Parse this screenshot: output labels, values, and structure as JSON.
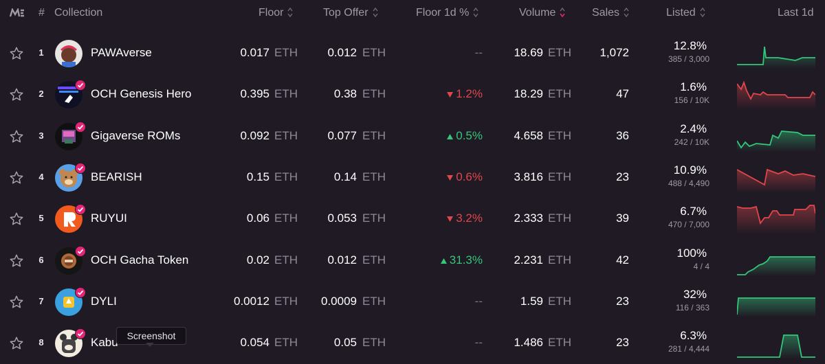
{
  "header": {
    "rank": "#",
    "collection": "Collection",
    "floor": "Floor",
    "top_offer": "Top Offer",
    "floor_change": "Floor 1d %",
    "volume": "Volume",
    "sales": "Sales",
    "listed": "Listed",
    "last": "Last 1d"
  },
  "rows": [
    {
      "rank": "1",
      "name": "PAWAverse",
      "floor": "0.017",
      "floor_unit": "ETH",
      "offer": "0.012",
      "offer_unit": "ETH",
      "change": "--",
      "dir": "none",
      "volume": "18.69",
      "volume_unit": "ETH",
      "sales": "1,072",
      "listed_pct": "12.8%",
      "listed_count": "385 / 3,000",
      "trend": "up"
    },
    {
      "rank": "2",
      "name": "OCH Genesis Hero",
      "floor": "0.395",
      "floor_unit": "ETH",
      "offer": "0.38",
      "offer_unit": "ETH",
      "change": "1.2%",
      "dir": "down",
      "volume": "18.29",
      "volume_unit": "ETH",
      "sales": "47",
      "listed_pct": "1.6%",
      "listed_count": "156 / 10K",
      "trend": "down"
    },
    {
      "rank": "3",
      "name": "Gigaverse ROMs",
      "floor": "0.092",
      "floor_unit": "ETH",
      "offer": "0.077",
      "offer_unit": "ETH",
      "change": "0.5%",
      "dir": "up",
      "volume": "4.658",
      "volume_unit": "ETH",
      "sales": "36",
      "listed_pct": "2.4%",
      "listed_count": "242 / 10K",
      "trend": "up"
    },
    {
      "rank": "4",
      "name": "BEARISH",
      "floor": "0.15",
      "floor_unit": "ETH",
      "offer": "0.14",
      "offer_unit": "ETH",
      "change": "0.6%",
      "dir": "down",
      "volume": "3.816",
      "volume_unit": "ETH",
      "sales": "23",
      "listed_pct": "10.9%",
      "listed_count": "488 / 4,490",
      "trend": "down"
    },
    {
      "rank": "5",
      "name": "RUYUI",
      "floor": "0.06",
      "floor_unit": "ETH",
      "offer": "0.053",
      "offer_unit": "ETH",
      "change": "3.2%",
      "dir": "down",
      "volume": "2.333",
      "volume_unit": "ETH",
      "sales": "39",
      "listed_pct": "6.7%",
      "listed_count": "470 / 7,000",
      "trend": "down"
    },
    {
      "rank": "6",
      "name": "OCH Gacha Token",
      "floor": "0.02",
      "floor_unit": "ETH",
      "offer": "0.012",
      "offer_unit": "ETH",
      "change": "31.3%",
      "dir": "up",
      "volume": "2.231",
      "volume_unit": "ETH",
      "sales": "42",
      "listed_pct": "100%",
      "listed_count": "4 / 4",
      "trend": "up"
    },
    {
      "rank": "7",
      "name": "DYLI",
      "floor": "0.0012",
      "floor_unit": "ETH",
      "offer": "0.0009",
      "offer_unit": "ETH",
      "change": "--",
      "dir": "none",
      "volume": "1.59",
      "volume_unit": "ETH",
      "sales": "23",
      "listed_pct": "32%",
      "listed_count": "116 / 363",
      "trend": "up"
    },
    {
      "rank": "8",
      "name": "Kabu",
      "floor": "0.054",
      "floor_unit": "ETH",
      "offer": "0.05",
      "offer_unit": "ETH",
      "change": "--",
      "dir": "none",
      "volume": "1.486",
      "volume_unit": "ETH",
      "sales": "23",
      "listed_pct": "6.3%",
      "listed_count": "281 / 4,444",
      "trend": "up"
    }
  ],
  "tooltip": "Screenshot",
  "colors": {
    "up": "#34c77b",
    "down": "#e0474c",
    "accent": "#e42575"
  }
}
